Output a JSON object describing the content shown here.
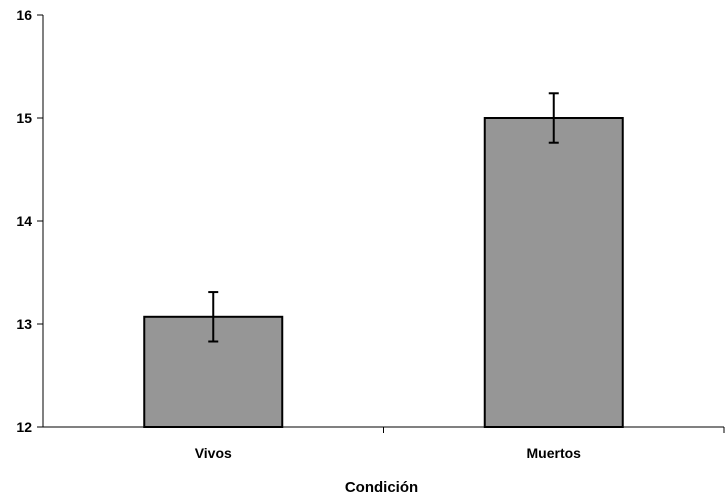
{
  "chart_data": {
    "type": "bar",
    "title": "",
    "xlabel": "Condición",
    "ylabel": "",
    "categories": [
      "Vivos",
      "Muertos"
    ],
    "values": [
      13.07,
      15.0
    ],
    "error": [
      0.24,
      0.24
    ],
    "ylim": [
      12,
      16
    ],
    "yticks": [
      12,
      13,
      14,
      15,
      16
    ],
    "grid": false,
    "legend": "none",
    "colors": {
      "bar": "#969696",
      "stroke": "#000000"
    }
  }
}
